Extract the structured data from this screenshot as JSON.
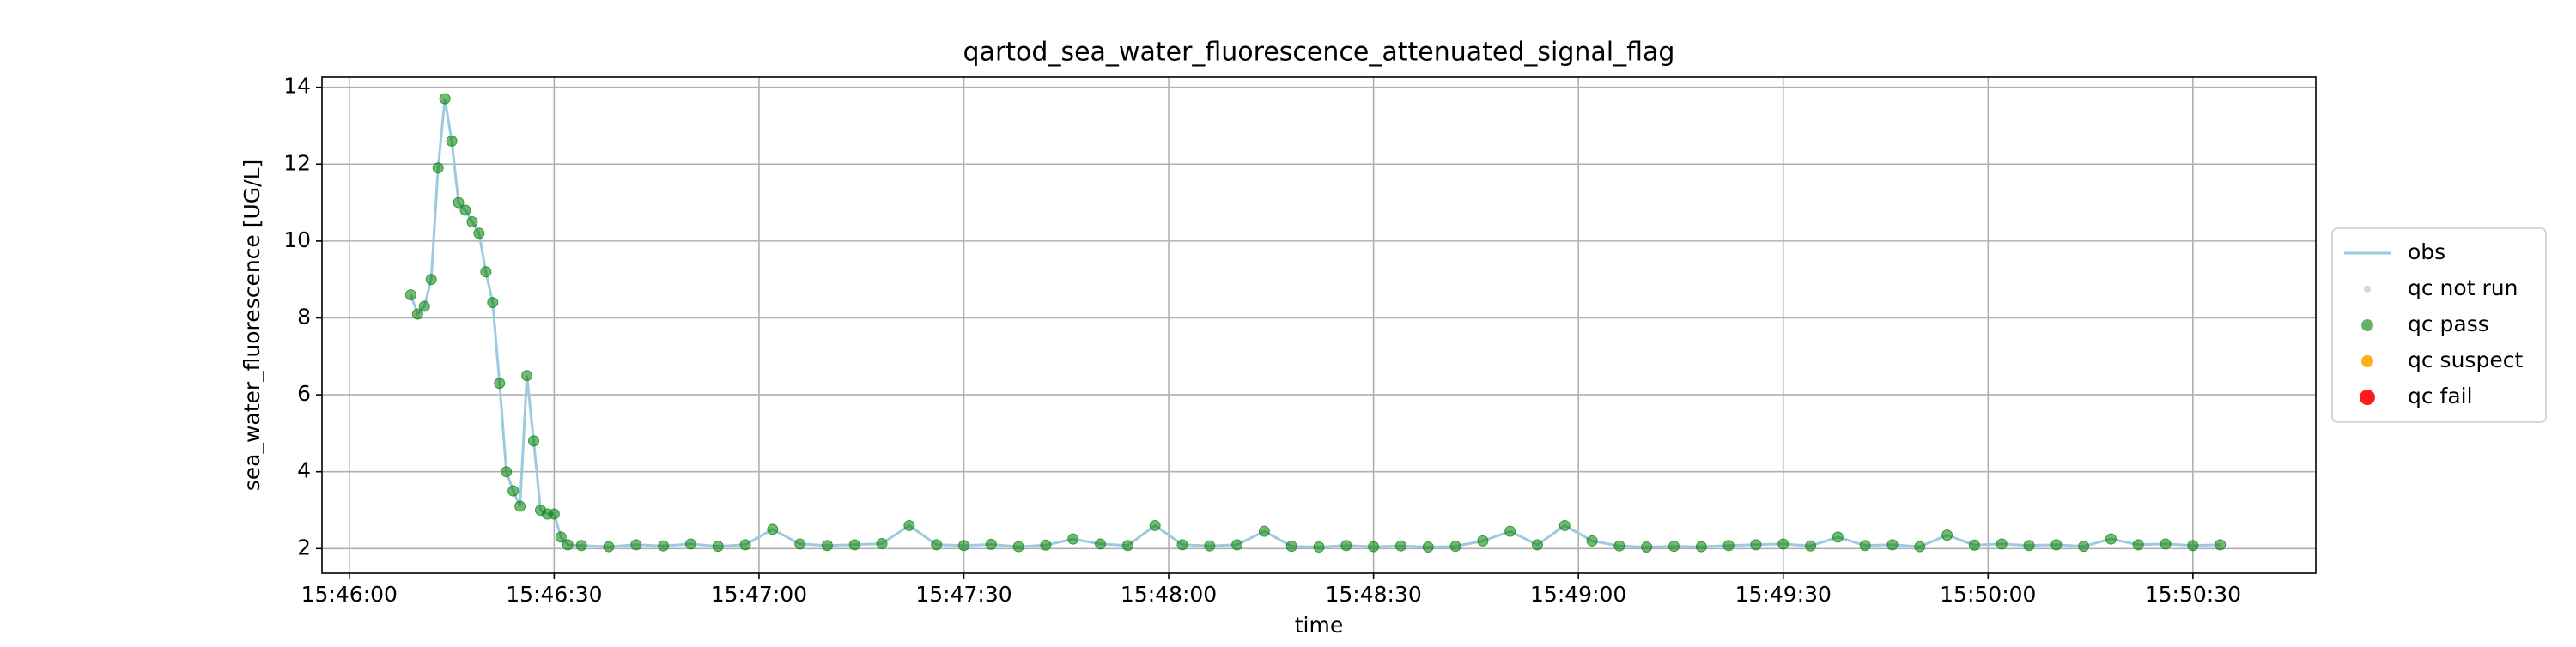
{
  "chart_data": {
    "type": "line",
    "title": "qartod_sea_water_fluorescence_attenuated_signal_flag",
    "xlabel": "time",
    "ylabel": "sea_water_fluorescence [UG/L]",
    "x": [
      "15:46:09",
      "15:46:10",
      "15:46:11",
      "15:46:12",
      "15:46:13",
      "15:46:14",
      "15:46:15",
      "15:46:16",
      "15:46:17",
      "15:46:18",
      "15:46:19",
      "15:46:20",
      "15:46:21",
      "15:46:22",
      "15:46:23",
      "15:46:24",
      "15:46:25",
      "15:46:26",
      "15:46:27",
      "15:46:28",
      "15:46:29",
      "15:46:30",
      "15:46:31",
      "15:46:32",
      "15:46:34",
      "15:46:38",
      "15:46:42",
      "15:46:46",
      "15:46:50",
      "15:46:54",
      "15:46:58",
      "15:47:02",
      "15:47:06",
      "15:47:10",
      "15:47:14",
      "15:47:18",
      "15:47:22",
      "15:47:26",
      "15:47:30",
      "15:47:34",
      "15:47:38",
      "15:47:42",
      "15:47:46",
      "15:47:50",
      "15:47:54",
      "15:47:58",
      "15:48:02",
      "15:48:06",
      "15:48:10",
      "15:48:14",
      "15:48:18",
      "15:48:22",
      "15:48:26",
      "15:48:30",
      "15:48:34",
      "15:48:38",
      "15:48:42",
      "15:48:46",
      "15:48:50",
      "15:48:54",
      "15:48:58",
      "15:49:02",
      "15:49:06",
      "15:49:10",
      "15:49:14",
      "15:49:18",
      "15:49:22",
      "15:49:26",
      "15:49:30",
      "15:49:34",
      "15:49:38",
      "15:49:42",
      "15:49:46",
      "15:49:50",
      "15:49:54",
      "15:49:58",
      "15:50:02",
      "15:50:06",
      "15:50:10",
      "15:50:14",
      "15:50:18",
      "15:50:22",
      "15:50:26",
      "15:50:30",
      "15:50:34"
    ],
    "series": [
      {
        "name": "obs",
        "color": "#9ecae1",
        "values": [
          8.6,
          8.1,
          8.3,
          9.0,
          11.9,
          13.7,
          12.6,
          11.0,
          10.8,
          10.5,
          10.2,
          9.2,
          8.4,
          6.3,
          4.0,
          3.5,
          3.1,
          6.5,
          4.8,
          3.0,
          2.9,
          2.9,
          2.3,
          2.1,
          2.08,
          2.05,
          2.1,
          2.07,
          2.12,
          2.06,
          2.1,
          2.5,
          2.12,
          2.08,
          2.1,
          2.13,
          2.6,
          2.1,
          2.08,
          2.11,
          2.05,
          2.09,
          2.25,
          2.12,
          2.08,
          2.6,
          2.1,
          2.07,
          2.1,
          2.45,
          2.06,
          2.04,
          2.08,
          2.05,
          2.07,
          2.04,
          2.06,
          2.2,
          2.45,
          2.1,
          2.6,
          2.2,
          2.07,
          2.04,
          2.06,
          2.05,
          2.08,
          2.1,
          2.12,
          2.07,
          2.3,
          2.08,
          2.1,
          2.05,
          2.35,
          2.09,
          2.12,
          2.08,
          2.1,
          2.06,
          2.25,
          2.1,
          2.12,
          2.08,
          2.1
        ]
      },
      {
        "name": "qc not run",
        "color": "#d3d3d3",
        "values": [
          null,
          null,
          null,
          null,
          null,
          null,
          null,
          null,
          null,
          null,
          null,
          null,
          null,
          null,
          null,
          null,
          null,
          null,
          null,
          null,
          null,
          null,
          null,
          null,
          null,
          null,
          null,
          null,
          null,
          null,
          null,
          null,
          null,
          null,
          null,
          null,
          null,
          null,
          null,
          null,
          null,
          null,
          null,
          null,
          null,
          null,
          null,
          null,
          null,
          null,
          null,
          null,
          null,
          null,
          null,
          null,
          null,
          null,
          null,
          null,
          null,
          null,
          null,
          null,
          null,
          null,
          null,
          null,
          null,
          null,
          null,
          null,
          null,
          null,
          null,
          null,
          null,
          null,
          null,
          null,
          null,
          null,
          null,
          null,
          null
        ]
      },
      {
        "name": "qc pass",
        "color": "#008000",
        "values": [
          8.6,
          8.1,
          8.3,
          9.0,
          11.9,
          13.7,
          12.6,
          11.0,
          10.8,
          10.5,
          10.2,
          9.2,
          8.4,
          6.3,
          4.0,
          3.5,
          3.1,
          6.5,
          4.8,
          3.0,
          2.9,
          2.9,
          2.3,
          2.1,
          2.08,
          2.05,
          2.1,
          2.07,
          2.12,
          2.06,
          2.1,
          2.5,
          2.12,
          2.08,
          2.1,
          2.13,
          2.6,
          2.1,
          2.08,
          2.11,
          2.05,
          2.09,
          2.25,
          2.12,
          2.08,
          2.6,
          2.1,
          2.07,
          2.1,
          2.45,
          2.06,
          2.04,
          2.08,
          2.05,
          2.07,
          2.04,
          2.06,
          2.2,
          2.45,
          2.1,
          2.6,
          2.2,
          2.07,
          2.04,
          2.06,
          2.05,
          2.08,
          2.1,
          2.12,
          2.07,
          2.3,
          2.08,
          2.1,
          2.05,
          2.35,
          2.09,
          2.12,
          2.08,
          2.1,
          2.06,
          2.25,
          2.1,
          2.12,
          2.08,
          2.1
        ]
      },
      {
        "name": "qc suspect",
        "color": "#ffa500",
        "values": [
          null,
          null,
          null,
          null,
          null,
          null,
          null,
          null,
          null,
          null,
          null,
          null,
          null,
          null,
          null,
          null,
          null,
          null,
          null,
          null,
          null,
          null,
          null,
          null,
          null,
          null,
          null,
          null,
          null,
          null,
          null,
          null,
          null,
          null,
          null,
          null,
          null,
          null,
          null,
          null,
          null,
          null,
          null,
          null,
          null,
          null,
          null,
          null,
          null,
          null,
          null,
          null,
          null,
          null,
          null,
          null,
          null,
          null,
          null,
          null,
          null,
          null,
          null,
          null,
          null,
          null,
          null,
          null,
          null,
          null,
          null,
          null,
          null,
          null,
          null,
          null,
          null,
          null,
          null,
          null,
          null,
          null,
          null,
          null,
          null
        ]
      },
      {
        "name": "qc fail",
        "color": "#ff0000",
        "values": [
          null,
          null,
          null,
          null,
          null,
          null,
          null,
          null,
          null,
          null,
          null,
          null,
          null,
          null,
          null,
          null,
          null,
          null,
          null,
          null,
          null,
          null,
          null,
          null,
          null,
          null,
          null,
          null,
          null,
          null,
          null,
          null,
          null,
          null,
          null,
          null,
          null,
          null,
          null,
          null,
          null,
          null,
          null,
          null,
          null,
          null,
          null,
          null,
          null,
          null,
          null,
          null,
          null,
          null,
          null,
          null,
          null,
          null,
          null,
          null,
          null,
          null,
          null,
          null,
          null,
          null,
          null,
          null,
          null,
          null,
          null,
          null,
          null,
          null,
          null,
          null,
          null,
          null,
          null,
          null,
          null,
          null,
          null,
          null,
          null
        ]
      }
    ],
    "xlim": [
      "15:45:56",
      "15:50:48"
    ],
    "xticks": [
      "15:46:00",
      "15:46:30",
      "15:47:00",
      "15:47:30",
      "15:48:00",
      "15:48:30",
      "15:49:00",
      "15:49:30",
      "15:50:00",
      "15:50:30"
    ],
    "ylim": [
      1.36,
      14.26
    ],
    "yticks": [
      2,
      4,
      6,
      8,
      10,
      12,
      14
    ],
    "grid": true,
    "legend": "center right"
  }
}
